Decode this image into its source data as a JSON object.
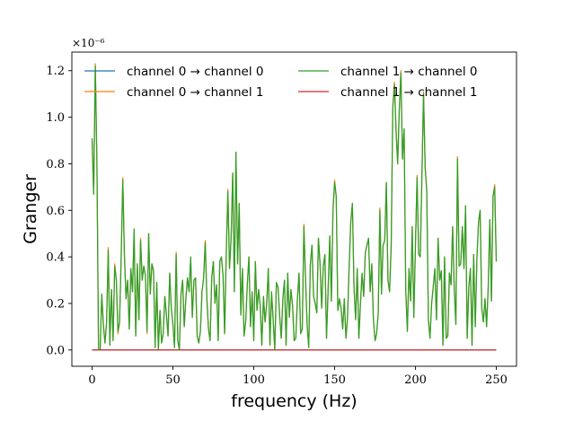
{
  "chart_data": {
    "type": "line",
    "title": "",
    "xlabel": "frequency (Hz)",
    "ylabel": "Granger",
    "y_offset_text": "×10⁻⁶",
    "y_scale": 1e-06,
    "xlim": [
      -12.5,
      262.5
    ],
    "ylim": [
      -0.07,
      1.28
    ],
    "xticks": [
      0,
      50,
      100,
      150,
      200,
      250
    ],
    "xtick_labels": [
      "0",
      "50",
      "100",
      "150",
      "200",
      "250"
    ],
    "yticks": [
      0.0,
      0.2,
      0.4,
      0.6,
      0.8,
      1.0,
      1.2
    ],
    "ytick_labels": [
      "0.0",
      "0.2",
      "0.4",
      "0.6",
      "0.8",
      "1.0",
      "1.2"
    ],
    "grid": false,
    "legend": {
      "placement": "top",
      "columns": 2
    },
    "x": {
      "start": 0,
      "end": 250,
      "step": 1
    },
    "series": [
      {
        "name": "channel 0 → channel 0",
        "color": "#1f77b4",
        "constant": 0.0
      },
      {
        "name": "channel 0 → channel 1",
        "color": "#ff7f0e",
        "values": [
          0.9,
          0.67,
          1.23,
          0.8,
          0.0,
          0.0,
          0.24,
          0.1,
          0.03,
          0.12,
          0.44,
          0.02,
          0.26,
          0.04,
          0.37,
          0.3,
          0.07,
          0.12,
          0.39,
          0.74,
          0.41,
          0.22,
          0.3,
          0.09,
          0.35,
          0.25,
          0.51,
          0.06,
          0.37,
          0.13,
          0.48,
          0.3,
          0.36,
          0.32,
          0.07,
          0.5,
          0.24,
          0.37,
          0.34,
          0.01,
          0.29,
          0.0,
          0.17,
          0.03,
          0.07,
          0.23,
          0.15,
          0.06,
          0.33,
          0.18,
          0.11,
          0.01,
          0.42,
          0.04,
          0.0,
          0.24,
          0.3,
          0.1,
          0.22,
          0.31,
          0.25,
          0.39,
          0.14,
          0.3,
          0.31,
          0.06,
          0.03,
          0.08,
          0.25,
          0.31,
          0.47,
          0.22,
          0.09,
          0.04,
          0.31,
          0.38,
          0.2,
          0.28,
          0.04,
          0.38,
          0.4,
          0.32,
          0.07,
          0.42,
          0.69,
          0.35,
          0.48,
          0.76,
          0.25,
          0.85,
          0.37,
          0.63,
          0.15,
          0.35,
          0.06,
          0.12,
          0.28,
          0.4,
          0.1,
          0.25,
          0.04,
          0.38,
          0.17,
          0.26,
          0.19,
          0.02,
          0.23,
          0.12,
          0.2,
          0.35,
          0.02,
          0.25,
          0.13,
          0.0,
          0.29,
          0.27,
          0.15,
          0.05,
          0.22,
          0.3,
          0.02,
          0.33,
          0.14,
          0.26,
          0.19,
          0.04,
          0.05,
          0.22,
          0.33,
          0.07,
          0.09,
          0.54,
          0.31,
          0.11,
          0.01,
          0.37,
          0.45,
          0.23,
          0.2,
          0.16,
          0.48,
          0.37,
          0.18,
          0.36,
          0.41,
          0.05,
          0.26,
          0.49,
          0.21,
          0.6,
          0.73,
          0.66,
          0.17,
          0.22,
          0.18,
          0.09,
          0.22,
          0.05,
          0.14,
          0.36,
          0.55,
          0.63,
          0.27,
          0.13,
          0.35,
          0.05,
          0.2,
          0.33,
          0.23,
          0.42,
          0.45,
          0.48,
          0.25,
          0.37,
          0.13,
          0.04,
          0.07,
          0.16,
          0.61,
          0.24,
          0.45,
          0.47,
          0.72,
          0.3,
          0.25,
          0.45,
          1.05,
          1.15,
          0.95,
          0.8,
          1.03,
          1.2,
          0.82,
          0.95,
          0.26,
          0.08,
          0.35,
          0.21,
          0.53,
          0.14,
          0.45,
          0.75,
          0.41,
          0.4,
          0.75,
          1.11,
          0.79,
          0.68,
          0.13,
          0.05,
          0.2,
          0.27,
          0.35,
          0.13,
          0.48,
          0.3,
          0.34,
          0.02,
          0.4,
          0.05,
          0.06,
          0.33,
          0.28,
          0.53,
          0.26,
          0.11,
          0.83,
          0.36,
          0.37,
          0.53,
          0.35,
          0.62,
          0.05,
          0.27,
          0.35,
          0.02,
          0.41,
          0.1,
          0.39,
          0.55,
          0.6,
          0.18,
          0.12,
          0.22,
          0.1,
          0.27,
          0.56,
          0.21,
          0.66,
          0.71,
          0.38,
          0.73,
          0.09,
          0.36,
          0.07,
          0.39,
          0.06,
          0.31,
          0.12,
          0.28,
          0.0
        ]
      },
      {
        "name": "channel 1 → channel 0",
        "color": "#2ca02c",
        "values": [
          0.91,
          0.67,
          1.22,
          0.81,
          0.0,
          0.0,
          0.24,
          0.11,
          0.03,
          0.12,
          0.43,
          0.02,
          0.26,
          0.04,
          0.36,
          0.3,
          0.08,
          0.12,
          0.4,
          0.73,
          0.41,
          0.22,
          0.3,
          0.09,
          0.35,
          0.25,
          0.52,
          0.06,
          0.37,
          0.13,
          0.47,
          0.3,
          0.36,
          0.32,
          0.08,
          0.5,
          0.24,
          0.37,
          0.34,
          0.01,
          0.29,
          0.0,
          0.17,
          0.03,
          0.07,
          0.23,
          0.15,
          0.06,
          0.33,
          0.18,
          0.11,
          0.01,
          0.41,
          0.04,
          0.0,
          0.24,
          0.3,
          0.1,
          0.22,
          0.31,
          0.25,
          0.4,
          0.14,
          0.3,
          0.31,
          0.06,
          0.03,
          0.08,
          0.25,
          0.31,
          0.46,
          0.22,
          0.09,
          0.04,
          0.31,
          0.38,
          0.2,
          0.28,
          0.04,
          0.38,
          0.4,
          0.32,
          0.07,
          0.42,
          0.68,
          0.35,
          0.48,
          0.76,
          0.25,
          0.85,
          0.37,
          0.63,
          0.15,
          0.35,
          0.06,
          0.12,
          0.28,
          0.4,
          0.1,
          0.25,
          0.04,
          0.38,
          0.17,
          0.26,
          0.19,
          0.02,
          0.23,
          0.12,
          0.2,
          0.35,
          0.02,
          0.25,
          0.13,
          0.0,
          0.29,
          0.27,
          0.15,
          0.05,
          0.22,
          0.3,
          0.02,
          0.33,
          0.14,
          0.26,
          0.19,
          0.04,
          0.05,
          0.22,
          0.33,
          0.07,
          0.09,
          0.53,
          0.31,
          0.11,
          0.01,
          0.37,
          0.45,
          0.23,
          0.2,
          0.16,
          0.48,
          0.37,
          0.18,
          0.36,
          0.41,
          0.05,
          0.26,
          0.49,
          0.21,
          0.6,
          0.72,
          0.66,
          0.17,
          0.22,
          0.18,
          0.09,
          0.22,
          0.05,
          0.14,
          0.36,
          0.55,
          0.63,
          0.27,
          0.13,
          0.35,
          0.05,
          0.2,
          0.33,
          0.23,
          0.42,
          0.45,
          0.48,
          0.25,
          0.37,
          0.13,
          0.04,
          0.07,
          0.16,
          0.6,
          0.24,
          0.45,
          0.47,
          0.72,
          0.3,
          0.25,
          0.45,
          1.04,
          1.14,
          0.94,
          0.8,
          1.03,
          1.19,
          0.82,
          0.95,
          0.26,
          0.08,
          0.35,
          0.21,
          0.53,
          0.14,
          0.45,
          0.74,
          0.41,
          0.4,
          0.75,
          1.1,
          0.78,
          0.68,
          0.13,
          0.05,
          0.2,
          0.27,
          0.35,
          0.13,
          0.48,
          0.3,
          0.34,
          0.02,
          0.4,
          0.05,
          0.06,
          0.33,
          0.28,
          0.53,
          0.26,
          0.11,
          0.82,
          0.36,
          0.37,
          0.53,
          0.35,
          0.62,
          0.05,
          0.27,
          0.35,
          0.02,
          0.41,
          0.1,
          0.39,
          0.55,
          0.6,
          0.18,
          0.12,
          0.22,
          0.1,
          0.27,
          0.56,
          0.21,
          0.66,
          0.7,
          0.38,
          0.73,
          0.09,
          0.36,
          0.07,
          0.39,
          0.06,
          0.31,
          0.12,
          0.28,
          0.0
        ]
      },
      {
        "name": "channel 1 → channel 1",
        "color": "#d62728",
        "constant": 0.0
      }
    ]
  }
}
